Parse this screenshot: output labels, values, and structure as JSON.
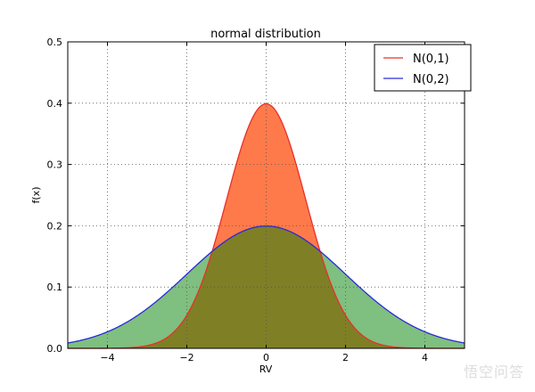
{
  "chart_data": {
    "type": "area",
    "title": "normal distribution",
    "xlabel": "RV",
    "ylabel": "f(x)",
    "xlim": [
      -5,
      5
    ],
    "ylim": [
      0,
      0.5
    ],
    "xticks": [
      "−4",
      "−2",
      "0",
      "2",
      "4"
    ],
    "xtick_values": [
      -4,
      -2,
      0,
      2,
      4
    ],
    "yticks": [
      "0.0",
      "0.1",
      "0.2",
      "0.3",
      "0.4",
      "0.5"
    ],
    "ytick_values": [
      0,
      0.1,
      0.2,
      0.3,
      0.4,
      0.5
    ],
    "grid": true,
    "legend_position": "top-right",
    "series": [
      {
        "name": "N(0,1)",
        "mean": 0,
        "std": 1,
        "line_color": "#e8302a",
        "fill_color": "#ff7a4a"
      },
      {
        "name": "N(0,2)",
        "mean": 0,
        "std": 2,
        "line_color": "#2a2ad8",
        "fill_color": "#7fbf7f"
      }
    ],
    "overlap_color": "#7f7f26"
  },
  "watermark": "悟空问答"
}
